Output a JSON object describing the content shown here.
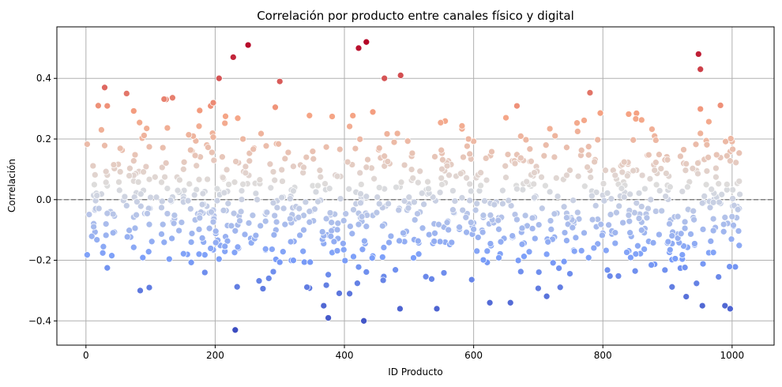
{
  "chart_data": {
    "type": "scatter",
    "title": "Correlación por producto entre canales físico y digital",
    "xlabel": "ID Producto",
    "ylabel": "Correlación",
    "xlim": [
      -45,
      1065
    ],
    "ylim": [
      -0.48,
      0.57
    ],
    "xticks": [
      0,
      200,
      400,
      600,
      800,
      1000
    ],
    "yticks": [
      -0.4,
      -0.2,
      0.0,
      0.2,
      0.4
    ],
    "ytick_labels": [
      "−0.4",
      "−0.2",
      "0.0",
      "0.2",
      "0.4"
    ],
    "grid": true,
    "reference_line": {
      "y": 0.0,
      "style": "dashed",
      "color": "#808080"
    },
    "colormap": "coolwarm",
    "color_range": [
      -0.43,
      0.52
    ],
    "colors": {
      "cool_end": "#3b4cc0",
      "neutral": "#dddddd",
      "warm_end": "#b40426"
    },
    "n_points": 1000,
    "highlighted_points": [
      {
        "x": 228,
        "y": 0.47
      },
      {
        "x": 251,
        "y": 0.51
      },
      {
        "x": 422,
        "y": 0.5
      },
      {
        "x": 434,
        "y": 0.52
      },
      {
        "x": 462,
        "y": 0.4
      },
      {
        "x": 487,
        "y": 0.41
      },
      {
        "x": 948,
        "y": 0.48
      },
      {
        "x": 951,
        "y": 0.43
      },
      {
        "x": 29,
        "y": 0.37
      },
      {
        "x": 63,
        "y": 0.35
      },
      {
        "x": 300,
        "y": 0.39
      },
      {
        "x": 206,
        "y": 0.4
      },
      {
        "x": 231,
        "y": -0.43
      },
      {
        "x": 430,
        "y": -0.4
      },
      {
        "x": 375,
        "y": -0.39
      },
      {
        "x": 368,
        "y": -0.35
      },
      {
        "x": 543,
        "y": -0.36
      },
      {
        "x": 486,
        "y": -0.36
      },
      {
        "x": 954,
        "y": -0.35
      },
      {
        "x": 989,
        "y": -0.35
      },
      {
        "x": 997,
        "y": -0.36
      },
      {
        "x": 84,
        "y": -0.3
      },
      {
        "x": 625,
        "y": -0.34
      },
      {
        "x": 657,
        "y": -0.34
      },
      {
        "x": 929,
        "y": -0.32
      }
    ]
  }
}
